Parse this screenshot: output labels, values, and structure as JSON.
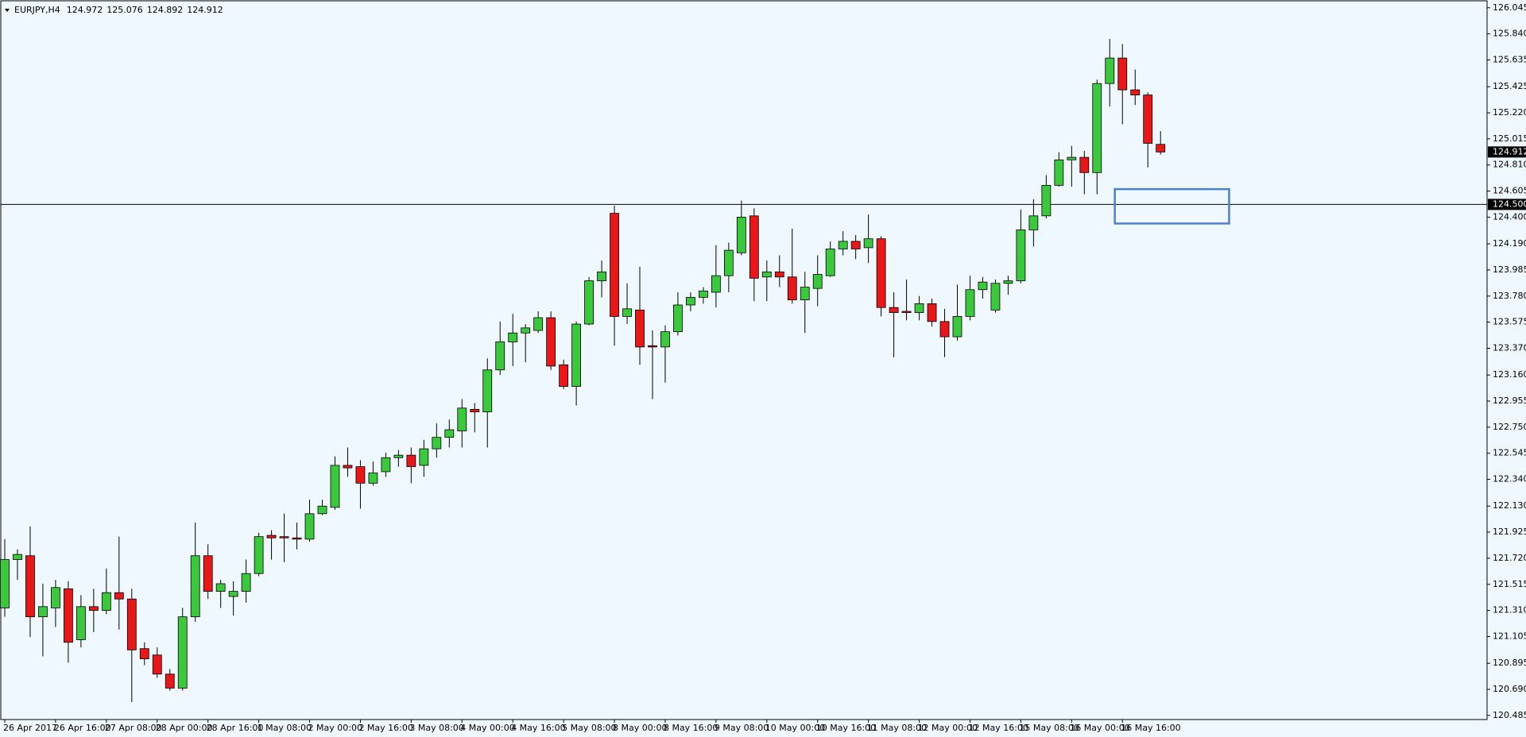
{
  "chart_data": {
    "type": "candlestick",
    "symbol": "EURJPY,H4",
    "categories": [
      "26 Apr 2017",
      null,
      null,
      null,
      "26 Apr 16:00",
      null,
      null,
      null,
      "27 Apr 08:00",
      null,
      null,
      null,
      "28 Apr 00:00",
      null,
      null,
      null,
      "28 Apr 16:00",
      null,
      null,
      null,
      "1 May 08:00",
      null,
      null,
      null,
      "2 May 00:00",
      null,
      null,
      null,
      "2 May 16:00",
      null,
      null,
      null,
      "3 May 08:00",
      null,
      null,
      null,
      "4 May 00:00",
      null,
      null,
      null,
      "4 May 16:00",
      null,
      null,
      null,
      "5 May 08:00",
      null,
      null,
      null,
      "8 May 00:00",
      null,
      null,
      null,
      "8 May 16:00",
      null,
      null,
      null,
      "9 May 08:00",
      null,
      null,
      null,
      "10 May 00:00",
      null,
      null,
      null,
      "10 May 16:00",
      null,
      null,
      null,
      "11 May 08:00",
      null,
      null,
      null,
      "12 May 00:00",
      null,
      null,
      null,
      "12 May 16:00",
      null,
      null,
      null,
      "15 May 08:00",
      null,
      null,
      null,
      "16 May 00:00",
      null,
      null,
      null,
      "16 May 16:00",
      null,
      null,
      null
    ],
    "open": [
      121.33,
      121.71,
      121.74,
      121.26,
      121.33,
      121.48,
      121.08,
      121.34,
      121.31,
      121.45,
      121.4,
      121.01,
      120.96,
      120.81,
      120.7,
      121.26,
      121.74,
      121.46,
      121.42,
      121.46,
      121.6,
      121.9,
      121.89,
      121.88,
      121.87,
      122.07,
      122.12,
      122.45,
      122.44,
      122.31,
      122.4,
      122.51,
      122.53,
      122.45,
      122.58,
      122.67,
      122.72,
      122.89,
      122.87,
      123.2,
      123.42,
      123.49,
      123.51,
      123.61,
      123.24,
      123.07,
      123.56,
      123.9,
      124.43,
      123.62,
      123.67,
      123.39,
      123.38,
      123.5,
      123.71,
      123.77,
      123.81,
      123.94,
      124.12,
      124.41,
      123.93,
      123.97,
      123.93,
      123.75,
      123.84,
      123.94,
      124.15,
      124.21,
      124.16,
      124.23,
      123.69,
      123.66,
      123.65,
      123.72,
      123.58,
      123.46,
      123.62,
      123.83,
      123.67,
      123.88,
      123.9,
      124.3,
      124.41,
      124.65,
      124.85,
      124.87,
      124.75,
      125.45,
      125.65,
      125.4,
      125.36,
      124.972
    ],
    "high": [
      121.87,
      121.79,
      121.97,
      121.52,
      121.55,
      121.54,
      121.43,
      121.48,
      121.64,
      121.89,
      121.48,
      121.06,
      121.02,
      120.85,
      121.33,
      122.0,
      121.83,
      121.55,
      121.54,
      121.71,
      121.92,
      121.94,
      122.07,
      122.0,
      122.18,
      122.18,
      122.52,
      122.59,
      122.49,
      122.48,
      122.55,
      122.57,
      122.59,
      122.65,
      122.78,
      122.81,
      122.97,
      122.94,
      123.29,
      123.58,
      123.64,
      123.56,
      123.66,
      123.66,
      123.28,
      123.58,
      123.93,
      124.06,
      124.49,
      123.88,
      124.01,
      123.51,
      123.55,
      123.81,
      123.81,
      123.85,
      124.18,
      124.2,
      124.53,
      124.47,
      124.06,
      124.1,
      124.31,
      123.97,
      124.1,
      124.21,
      124.29,
      124.26,
      124.42,
      124.25,
      123.81,
      123.91,
      123.78,
      123.76,
      123.68,
      123.87,
      123.94,
      123.93,
      123.91,
      123.94,
      124.46,
      124.54,
      124.73,
      124.91,
      124.96,
      124.92,
      125.48,
      125.8,
      125.76,
      125.56,
      125.38,
      125.076
    ],
    "low": [
      121.26,
      121.55,
      121.1,
      120.95,
      121.18,
      120.9,
      121.02,
      121.14,
      121.28,
      121.16,
      120.59,
      120.88,
      120.78,
      120.68,
      120.68,
      121.22,
      121.4,
      121.33,
      121.27,
      121.37,
      121.58,
      121.71,
      121.69,
      121.79,
      121.85,
      122.06,
      122.1,
      122.36,
      122.11,
      122.29,
      122.36,
      122.44,
      122.31,
      122.36,
      122.51,
      122.59,
      122.59,
      122.71,
      122.59,
      123.16,
      123.23,
      123.26,
      123.49,
      123.2,
      123.05,
      122.92,
      123.55,
      123.77,
      123.39,
      123.56,
      123.24,
      122.97,
      123.1,
      123.47,
      123.66,
      123.72,
      123.69,
      123.81,
      124.1,
      123.74,
      123.74,
      123.85,
      123.72,
      123.49,
      123.7,
      123.93,
      124.1,
      124.07,
      124.04,
      123.62,
      123.3,
      123.59,
      123.59,
      123.54,
      123.3,
      123.43,
      123.59,
      123.76,
      123.65,
      123.79,
      123.88,
      124.17,
      124.39,
      124.64,
      124.64,
      124.58,
      124.58,
      125.27,
      125.13,
      125.28,
      124.79,
      124.892
    ],
    "close": [
      121.71,
      121.75,
      121.26,
      121.34,
      121.49,
      121.06,
      121.34,
      121.31,
      121.45,
      121.4,
      121.0,
      120.93,
      120.81,
      120.7,
      121.26,
      121.74,
      121.46,
      121.52,
      121.46,
      121.6,
      121.89,
      121.88,
      121.88,
      121.87,
      122.07,
      122.13,
      122.45,
      122.43,
      122.31,
      122.39,
      122.51,
      122.53,
      122.44,
      122.58,
      122.67,
      122.73,
      122.9,
      122.87,
      123.2,
      123.42,
      123.49,
      123.53,
      123.61,
      123.23,
      123.07,
      123.56,
      123.9,
      123.97,
      123.62,
      123.68,
      123.38,
      123.38,
      123.5,
      123.71,
      123.77,
      123.82,
      123.94,
      124.14,
      124.4,
      123.92,
      123.97,
      123.93,
      123.75,
      123.85,
      123.95,
      124.15,
      124.21,
      124.15,
      124.23,
      123.69,
      123.65,
      123.65,
      123.72,
      123.58,
      123.46,
      123.62,
      123.83,
      123.89,
      123.88,
      123.9,
      124.3,
      124.41,
      124.65,
      124.85,
      124.87,
      124.75,
      125.45,
      125.65,
      125.4,
      125.36,
      124.98,
      124.912
    ],
    "up_color": "#3cc83c",
    "down_color": "#e81818",
    "background": "#f0f8ff",
    "ylim": [
      120.453,
      126.106
    ],
    "yticks": [
      126.045,
      {
        "value": 125.84,
        "label": "125.840"
      },
      125.635,
      125.425,
      {
        "value": 125.22,
        "label": "125.220"
      },
      125.015,
      {
        "value": 124.81,
        "label": "124.810"
      },
      124.605,
      {
        "value": 124.4,
        "label": "124.400"
      },
      {
        "value": 124.19,
        "label": "124.190"
      },
      123.985,
      {
        "value": 123.78,
        "label": "123.780"
      },
      123.575,
      {
        "value": 123.37,
        "label": "123.370"
      },
      {
        "value": 123.16,
        "label": "123.160"
      },
      122.955,
      {
        "value": 122.75,
        "label": "122.750"
      },
      122.545,
      {
        "value": 122.34,
        "label": "122.340"
      },
      {
        "value": 122.13,
        "label": "122.130"
      },
      121.925,
      {
        "value": 121.72,
        "label": "121.720"
      },
      121.515,
      {
        "value": 121.31,
        "label": "121.310"
      },
      121.105,
      120.895,
      {
        "value": 120.69,
        "label": "120.690"
      },
      120.485
    ],
    "hline": {
      "value": 124.5,
      "label": "124.500"
    },
    "zone": {
      "price_range": [
        124.35,
        124.62
      ],
      "bar_range": [
        87.4,
        96.4
      ],
      "color": "#4a7fd4"
    }
  }
}
